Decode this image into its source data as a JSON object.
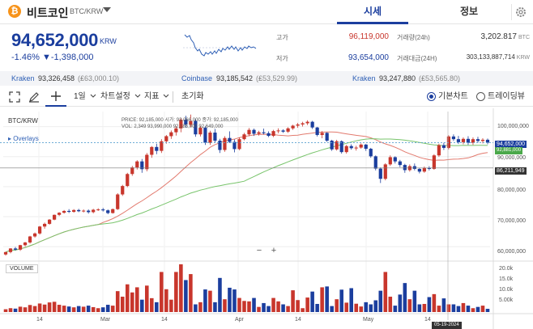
{
  "header": {
    "coin_icon_glyph": "₿",
    "coin_name": "비트코인",
    "pair": "BTC/KRW",
    "tabs": [
      "시세",
      "정보"
    ],
    "icons": [
      "bitcoin-icon",
      "chevron-down-icon",
      "gear-icon"
    ]
  },
  "summary": {
    "price": "94,652,000",
    "price_unit": "KRW",
    "change_pct": "-1.46%",
    "change_abs": "▼-1,398,000",
    "high_label": "고가",
    "high": "96,119,000",
    "low_label": "저가",
    "low": "93,654,000",
    "vol_label": "거래량(24h)",
    "vol": "3,202.817",
    "vol_unit": "BTC",
    "amount_label": "거래대금(24H)",
    "amount": "303,133,887,714",
    "amount_unit": "KRW",
    "colors": {
      "up": "#c8362c",
      "down": "#1b3e9e"
    }
  },
  "exchanges": [
    {
      "name": "Kraken",
      "krw": "93,326,458",
      "gbp": "(₤63,000.10)"
    },
    {
      "name": "Coinbase",
      "krw": "93,185,542",
      "gbp": "(₤53,529.99)"
    },
    {
      "name": "Kraken",
      "krw": "93,247,880",
      "gbp": "(₤53,565.80)"
    }
  ],
  "toolbar": {
    "interval": "1일",
    "chart_settings": "차트설정",
    "indicators": "지표",
    "reset": "초기화",
    "basic_chart": "기본차트",
    "tradingview": "트레이딩뷰",
    "icons": [
      "expand-icon",
      "pencil-icon",
      "crosshair-icon",
      "chevron-down-icon"
    ]
  },
  "chart": {
    "title": "BTC/KRW",
    "overlays": "▸ Overlays",
    "ohlc_row1": "PRICE: 92,185,000   시가: 93,066,000   종가: 92,185,000",
    "ohlc_row2": "VOL: 2,349   93,990,000   92,185,000   92,649,000",
    "volume_label": "VOLUME",
    "zoom_out": "−",
    "zoom_in": "+",
    "current_price_tag": "94,652,000",
    "ma_tag": "92,881,000",
    "cursor_price_tag": "86,211,949",
    "cursor_date": "05-19-2024",
    "x_ticks": [
      "14",
      "Mar",
      "14",
      "Apr",
      "14",
      "May",
      "14"
    ],
    "y_ticks": [
      "100,000,000",
      "90,000,000",
      "80,000,000",
      "70,000,000",
      "60,000,000"
    ],
    "vol_ticks": [
      "20.0k",
      "15.0k",
      "10.0k",
      "5.00k"
    ]
  },
  "chart_data": {
    "type": "candlestick",
    "title": "BTC/KRW",
    "ylim": [
      56000000,
      105000000
    ],
    "x_range": [
      "2024-02-01",
      "2024-06-03"
    ],
    "candles": [
      [
        57.4,
        58.3,
        57.0,
        58.2
      ],
      [
        58.2,
        59.5,
        57.8,
        59.4
      ],
      [
        59.4,
        59.9,
        58.7,
        59.0
      ],
      [
        59.0,
        60.6,
        58.6,
        60.5
      ],
      [
        60.5,
        61.6,
        60.0,
        61.4
      ],
      [
        61.4,
        63.6,
        61.0,
        63.4
      ],
      [
        63.4,
        64.7,
        63.0,
        64.4
      ],
      [
        64.4,
        66.9,
        64.0,
        66.7
      ],
      [
        66.7,
        68.0,
        66.0,
        67.6
      ],
      [
        67.6,
        69.2,
        67.3,
        69.0
      ],
      [
        69.0,
        70.7,
        68.8,
        70.6
      ],
      [
        70.6,
        71.5,
        70.2,
        71.3
      ],
      [
        71.3,
        72.2,
        71.0,
        71.9
      ],
      [
        71.9,
        72.5,
        71.2,
        71.6
      ],
      [
        71.6,
        72.5,
        71.3,
        72.2
      ],
      [
        72.2,
        72.6,
        71.5,
        71.8
      ],
      [
        71.8,
        72.4,
        71.4,
        72.0
      ],
      [
        72.0,
        72.4,
        71.0,
        71.5
      ],
      [
        71.5,
        72.6,
        71.1,
        72.3
      ],
      [
        72.3,
        72.8,
        71.9,
        72.4
      ],
      [
        72.4,
        72.9,
        71.7,
        72.1
      ],
      [
        72.1,
        72.4,
        70.8,
        71.2
      ],
      [
        71.2,
        72.7,
        71.0,
        72.5
      ],
      [
        72.5,
        77.8,
        72.2,
        77.4
      ],
      [
        77.4,
        80.6,
        76.9,
        80.2
      ],
      [
        80.2,
        84.6,
        79.8,
        84.2
      ],
      [
        84.2,
        86.9,
        83.6,
        86.4
      ],
      [
        86.4,
        88.8,
        85.7,
        88.4
      ],
      [
        88.4,
        89.2,
        84.6,
        85.8
      ],
      [
        85.8,
        91.2,
        85.1,
        90.6
      ],
      [
        90.6,
        93.5,
        89.6,
        93.2
      ],
      [
        93.2,
        94.3,
        90.8,
        91.9
      ],
      [
        91.9,
        95.8,
        91.2,
        95.1
      ],
      [
        95.1,
        97.2,
        94.3,
        96.8
      ],
      [
        96.8,
        98.7,
        95.9,
        98.1
      ],
      [
        98.1,
        100.1,
        97.0,
        99.4
      ],
      [
        99.4,
        102.9,
        98.1,
        102.3
      ],
      [
        102.3,
        103.6,
        99.6,
        100.6
      ],
      [
        100.6,
        104.0,
        99.9,
        101.9
      ],
      [
        101.9,
        102.4,
        96.6,
        97.4
      ],
      [
        97.4,
        100.2,
        96.7,
        99.6
      ],
      [
        99.6,
        100.1,
        93.9,
        94.6
      ],
      [
        94.6,
        98.6,
        93.9,
        98.0
      ],
      [
        98.0,
        99.2,
        94.6,
        95.3
      ],
      [
        95.3,
        95.9,
        91.2,
        92.2
      ],
      [
        92.2,
        96.8,
        91.6,
        96.2
      ],
      [
        96.2,
        98.4,
        94.5,
        94.9
      ],
      [
        94.9,
        95.7,
        91.4,
        92.5
      ],
      [
        92.5,
        96.4,
        92.1,
        95.8
      ],
      [
        95.8,
        97.9,
        95.4,
        97.4
      ],
      [
        97.4,
        99.5,
        96.8,
        98.9
      ],
      [
        98.9,
        99.3,
        96.9,
        97.6
      ],
      [
        97.6,
        98.6,
        97.0,
        98.1
      ],
      [
        98.1,
        99.3,
        97.4,
        97.8
      ],
      [
        97.8,
        98.4,
        96.5,
        96.9
      ],
      [
        96.9,
        98.9,
        96.5,
        98.5
      ],
      [
        98.5,
        99.4,
        97.8,
        98.7
      ],
      [
        98.7,
        99.1,
        97.9,
        98.3
      ],
      [
        98.3,
        99.8,
        97.9,
        99.4
      ],
      [
        99.4,
        100.6,
        98.9,
        100.3
      ],
      [
        100.3,
        101.2,
        99.6,
        100.7
      ],
      [
        100.7,
        101.6,
        100.0,
        101.1
      ],
      [
        101.1,
        102.1,
        100.5,
        101.6
      ],
      [
        101.6,
        101.9,
        99.2,
        99.7
      ],
      [
        99.7,
        99.9,
        96.7,
        97.2
      ],
      [
        97.2,
        98.5,
        96.1,
        97.9
      ],
      [
        97.9,
        98.1,
        94.9,
        95.3
      ],
      [
        95.3,
        95.6,
        91.9,
        92.4
      ],
      [
        92.4,
        95.6,
        92.0,
        95.1
      ],
      [
        95.1,
        95.4,
        91.0,
        91.5
      ],
      [
        91.5,
        93.9,
        91.0,
        93.5
      ],
      [
        93.5,
        94.1,
        92.3,
        92.8
      ],
      [
        92.8,
        93.6,
        92.0,
        93.0
      ],
      [
        93.0,
        94.4,
        92.6,
        94.0
      ],
      [
        94.0,
        94.2,
        91.9,
        92.6
      ],
      [
        92.6,
        92.9,
        89.6,
        90.1
      ],
      [
        90.1,
        90.4,
        85.4,
        86.0
      ],
      [
        86.0,
        86.4,
        81.2,
        82.6
      ],
      [
        82.6,
        87.8,
        82.1,
        87.4
      ],
      [
        87.4,
        90.4,
        86.9,
        89.8
      ],
      [
        89.8,
        90.1,
        87.7,
        88.4
      ],
      [
        88.4,
        88.9,
        86.5,
        87.2
      ],
      [
        87.2,
        87.6,
        84.6,
        85.5
      ],
      [
        85.5,
        87.4,
        85.0,
        86.8
      ],
      [
        86.8,
        87.7,
        85.4,
        85.9
      ],
      [
        85.9,
        86.2,
        84.4,
        85.0
      ],
      [
        85.0,
        86.7,
        84.6,
        86.3
      ],
      [
        86.3,
        86.8,
        85.4,
        85.9
      ],
      [
        85.9,
        90.8,
        85.6,
        90.4
      ],
      [
        90.4,
        94.3,
        89.9,
        93.8
      ],
      [
        93.8,
        94.6,
        92.2,
        92.9
      ],
      [
        92.9,
        97.1,
        92.4,
        96.7
      ],
      [
        96.7,
        97.4,
        95.2,
        95.8
      ],
      [
        95.8,
        96.9,
        94.2,
        94.8
      ],
      [
        94.8,
        96.4,
        94.1,
        95.9
      ],
      [
        95.9,
        96.8,
        93.9,
        94.6
      ],
      [
        94.6,
        96.4,
        93.9,
        95.8
      ],
      [
        95.8,
        96.6,
        94.6,
        95.2
      ],
      [
        95.2,
        96.1,
        94.4,
        95.6
      ],
      [
        95.6,
        96.0,
        94.1,
        94.65
      ]
    ],
    "volume": [
      1.3,
      1.8,
      1.6,
      2.5,
      2.2,
      3.3,
      2.8,
      4.0,
      3.5,
      4.5,
      4.8,
      3.4,
      3.0,
      2.6,
      2.2,
      2.8,
      2.5,
      3.0,
      2.3,
      1.8,
      2.2,
      3.4,
      3.0,
      9.8,
      7.2,
      13.0,
      9.2,
      11.6,
      5.8,
      12.4,
      6.5,
      4.6,
      18.8,
      10.7,
      5.8,
      18.8,
      22.4,
      15.0,
      17.8,
      3.6,
      4.6,
      10.6,
      10.0,
      4.6,
      16.0,
      6.0,
      11.4,
      10.6,
      6.6,
      5.2,
      5.0,
      6.6,
      2.4,
      4.2,
      2.8,
      6.6,
      5.0,
      3.6,
      2.8,
      10.2,
      5.6,
      1.8,
      6.8,
      9.6,
      3.8,
      11.6,
      12.0,
      2.8,
      6.0,
      10.5,
      4.4,
      11.2,
      3.9,
      2.6,
      4.6,
      3.6,
      5.5,
      10.0,
      18.8,
      7.2,
      3.0,
      8.2,
      13.6,
      6.0,
      10.0,
      3.6,
      3.8,
      7.0,
      8.4,
      3.0,
      6.4,
      3.6,
      3.6,
      2.8,
      4.2,
      3.0,
      1.8,
      2.4,
      3.0,
      1.5
    ],
    "volume_ylim": [
      0,
      22000
    ],
    "moving_averages": [
      {
        "name": "",
        "color": "#e27a6e",
        "period": 20
      },
      {
        "name": "",
        "color": "#78c46b",
        "period": 50
      }
    ],
    "units": "candle OHLC values in millions KRW, volume in thousands BTC"
  }
}
